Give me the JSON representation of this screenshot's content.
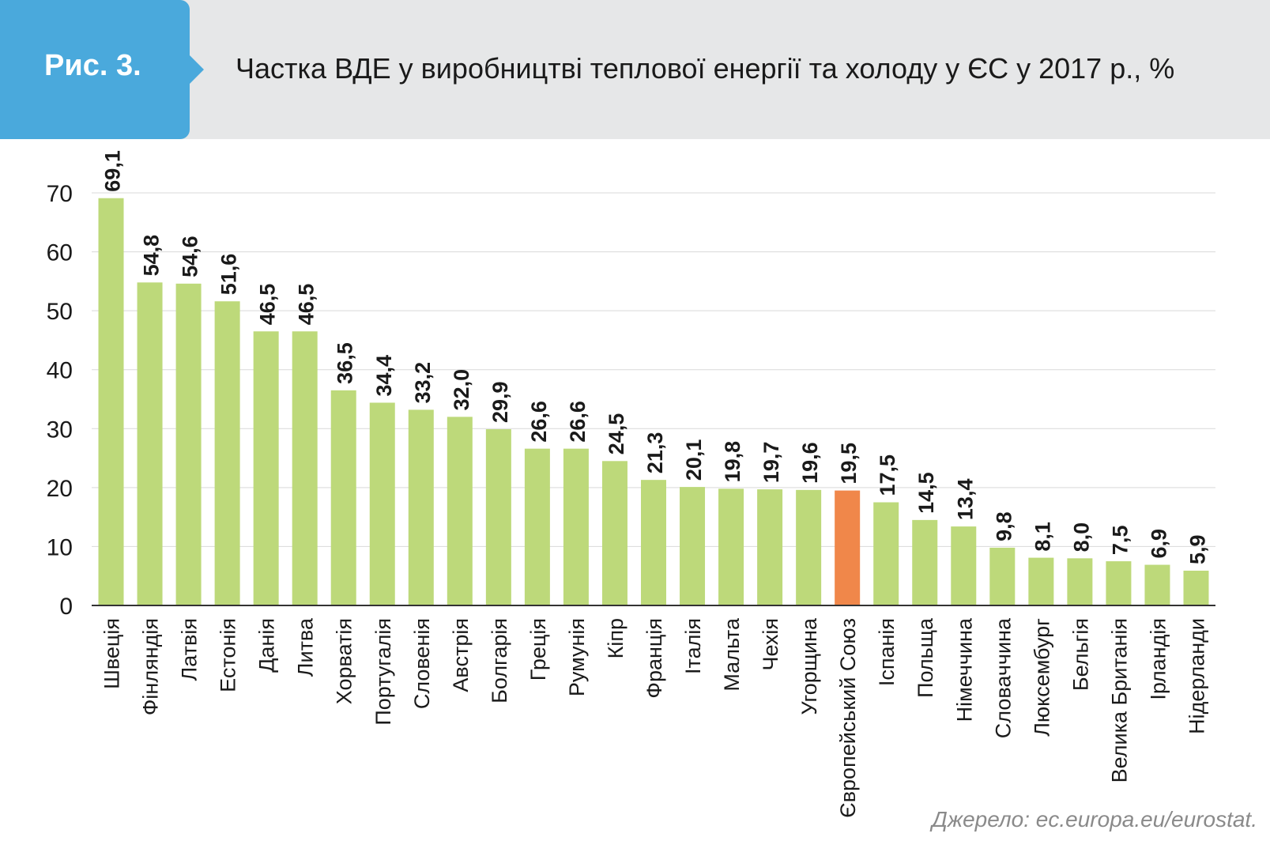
{
  "header": {
    "fig_label": "Рис. 3.",
    "title": "Частка ВДЕ у виробництві теплової енергії та холоду у ЄС у 2017 р., %"
  },
  "source": "Джерело: ec.europa.eu/eurostat.",
  "colors": {
    "bar": "#bdd97a",
    "highlight": "#f0874a",
    "grid": "#d9d9d9",
    "badge": "#4aa9dc"
  },
  "chart_data": {
    "type": "bar",
    "title": "Частка ВДЕ у виробництві теплової енергії та холоду у ЄС у 2017 р., %",
    "ylim": [
      0,
      70
    ],
    "yticks": [
      0,
      10,
      20,
      30,
      40,
      50,
      60,
      70
    ],
    "grid": true,
    "highlight_category": "Європейський Союз",
    "categories": [
      "Швеція",
      "Фінляндія",
      "Латвія",
      "Естонія",
      "Данія",
      "Литва",
      "Хорватія",
      "Португалія",
      "Словенія",
      "Австрія",
      "Болгарія",
      "Греція",
      "Румунія",
      "Кіпр",
      "Франція",
      "Італія",
      "Мальта",
      "Чехія",
      "Угорщина",
      "Європейський Союз",
      "Іспанія",
      "Польща",
      "Німеччина",
      "Словаччина",
      "Люксембург",
      "Бельгія",
      "Велика Британія",
      "Ірландія",
      "Нідерланди"
    ],
    "values": [
      69.1,
      54.8,
      54.6,
      51.6,
      46.5,
      46.5,
      36.5,
      34.4,
      33.2,
      32.0,
      29.9,
      26.6,
      26.6,
      24.5,
      21.3,
      20.1,
      19.8,
      19.7,
      19.6,
      19.5,
      17.5,
      14.5,
      13.4,
      9.8,
      8.1,
      8.0,
      7.5,
      6.9,
      5.9
    ],
    "value_labels": [
      "69,1",
      "54,8",
      "54,6",
      "51,6",
      "46,5",
      "46,5",
      "36,5",
      "34,4",
      "33,2",
      "32,0",
      "29,9",
      "26,6",
      "26,6",
      "24,5",
      "21,3",
      "20,1",
      "19,8",
      "19,7",
      "19,6",
      "19,5",
      "17,5",
      "14,5",
      "13,4",
      "9,8",
      "8,1",
      "8,0",
      "7,5",
      "6,9",
      "5,9"
    ]
  }
}
